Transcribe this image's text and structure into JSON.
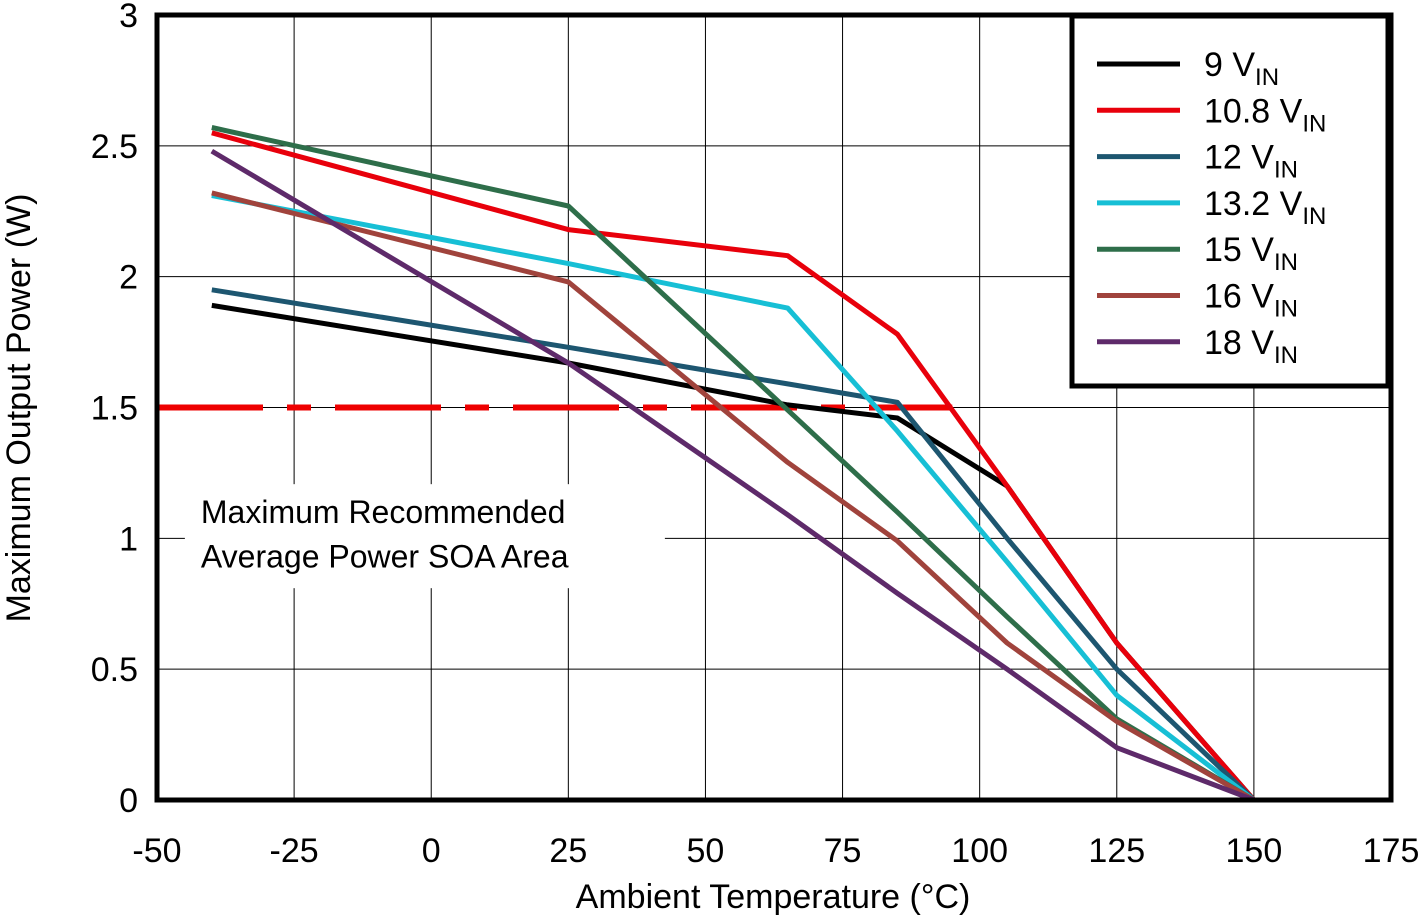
{
  "chart_data": {
    "type": "line",
    "xlabel": "Ambient Temperature (°C)",
    "ylabel": "Maximum Output Power (W)",
    "xlim": [
      -50,
      175
    ],
    "ylim": [
      0,
      3
    ],
    "xticks": [
      -50,
      -25,
      0,
      25,
      50,
      75,
      100,
      125,
      150,
      175
    ],
    "xtick_labels": [
      "-50",
      "-25",
      "0",
      "25",
      "50",
      "75",
      "100",
      "125",
      "150",
      "175"
    ],
    "yticks": [
      0,
      0.5,
      1,
      1.5,
      2,
      2.5,
      3
    ],
    "ytick_labels": [
      "0",
      "0.5",
      "1",
      "1.5",
      "2",
      "2.5",
      "3"
    ],
    "grid": true,
    "legend_position": "top-right",
    "series": [
      {
        "name": "9",
        "unit": "V",
        "unit_sub": "IN",
        "color": "#000000",
        "x": [
          -40,
          25,
          65,
          85,
          105,
          125,
          150
        ],
        "y": [
          1.89,
          1.67,
          1.51,
          1.46,
          1.2,
          0.6,
          0
        ]
      },
      {
        "name": "10.8",
        "unit": "V",
        "unit_sub": "IN",
        "color": "#e8000b",
        "x": [
          -40,
          25,
          65,
          85,
          105,
          125,
          150
        ],
        "y": [
          2.55,
          2.18,
          2.08,
          1.78,
          1.2,
          0.6,
          0
        ]
      },
      {
        "name": "12",
        "unit": "V",
        "unit_sub": "IN",
        "color": "#1d5670",
        "x": [
          -40,
          25,
          65,
          85,
          105,
          125,
          150
        ],
        "y": [
          1.95,
          1.73,
          1.59,
          1.52,
          1.0,
          0.5,
          0
        ]
      },
      {
        "name": "13.2",
        "unit": "V",
        "unit_sub": "IN",
        "color": "#17bfd5",
        "x": [
          -40,
          25,
          65,
          85,
          105,
          125,
          150
        ],
        "y": [
          2.31,
          2.05,
          1.88,
          1.41,
          0.91,
          0.4,
          0
        ]
      },
      {
        "name": "15",
        "unit": "V",
        "unit_sub": "IN",
        "color": "#2e6e4a",
        "x": [
          -40,
          25,
          65,
          85,
          105,
          125,
          150
        ],
        "y": [
          2.57,
          2.27,
          1.49,
          1.1,
          0.7,
          0.31,
          0
        ]
      },
      {
        "name": "16",
        "unit": "V",
        "unit_sub": "IN",
        "color": "#a0433c",
        "x": [
          -40,
          25,
          65,
          85,
          105,
          125,
          150
        ],
        "y": [
          2.32,
          1.98,
          1.29,
          0.99,
          0.6,
          0.3,
          0
        ]
      },
      {
        "name": "18",
        "unit": "V",
        "unit_sub": "IN",
        "color": "#5e2a6a",
        "x": [
          -40,
          25,
          65,
          85,
          105,
          125,
          150
        ],
        "y": [
          2.48,
          1.67,
          1.09,
          0.79,
          0.5,
          0.2,
          0
        ]
      }
    ],
    "reference_line": {
      "y": 1.5,
      "x": [
        -50,
        95
      ],
      "color": "#ee0000",
      "style": "dashed"
    },
    "annotation": {
      "line1": "Maximum Recommended",
      "line2": "Average Power SOA Area",
      "x": -42,
      "y1": 1.1,
      "y2": 0.93
    }
  }
}
